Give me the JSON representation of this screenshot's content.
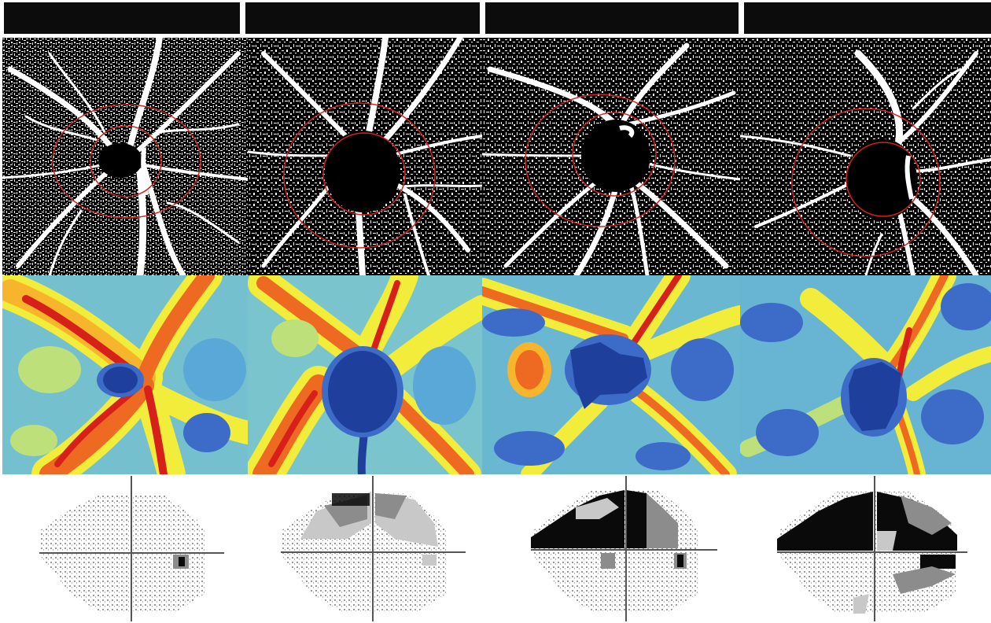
{
  "figure": {
    "columns": 4,
    "rows": [
      "angiography-binarized",
      "vessel-density-heatmap",
      "visual-field-greyscale"
    ],
    "header_bar_color": "#0c0c0c",
    "roi_circle_color": "#d42020",
    "vessel_color": "#ffffff",
    "background_color": "#000000",
    "heatmap_palette": [
      "#1f3f9c",
      "#3c6cc8",
      "#5aa8d8",
      "#8ad3c8",
      "#bde07a",
      "#f2ec3a",
      "#f7b52c",
      "#ee6a22",
      "#d8201a"
    ],
    "visual_field_shades": [
      "#ffffff",
      "#c8c8c8",
      "#8c8c8c",
      "#0a0a0a"
    ]
  }
}
